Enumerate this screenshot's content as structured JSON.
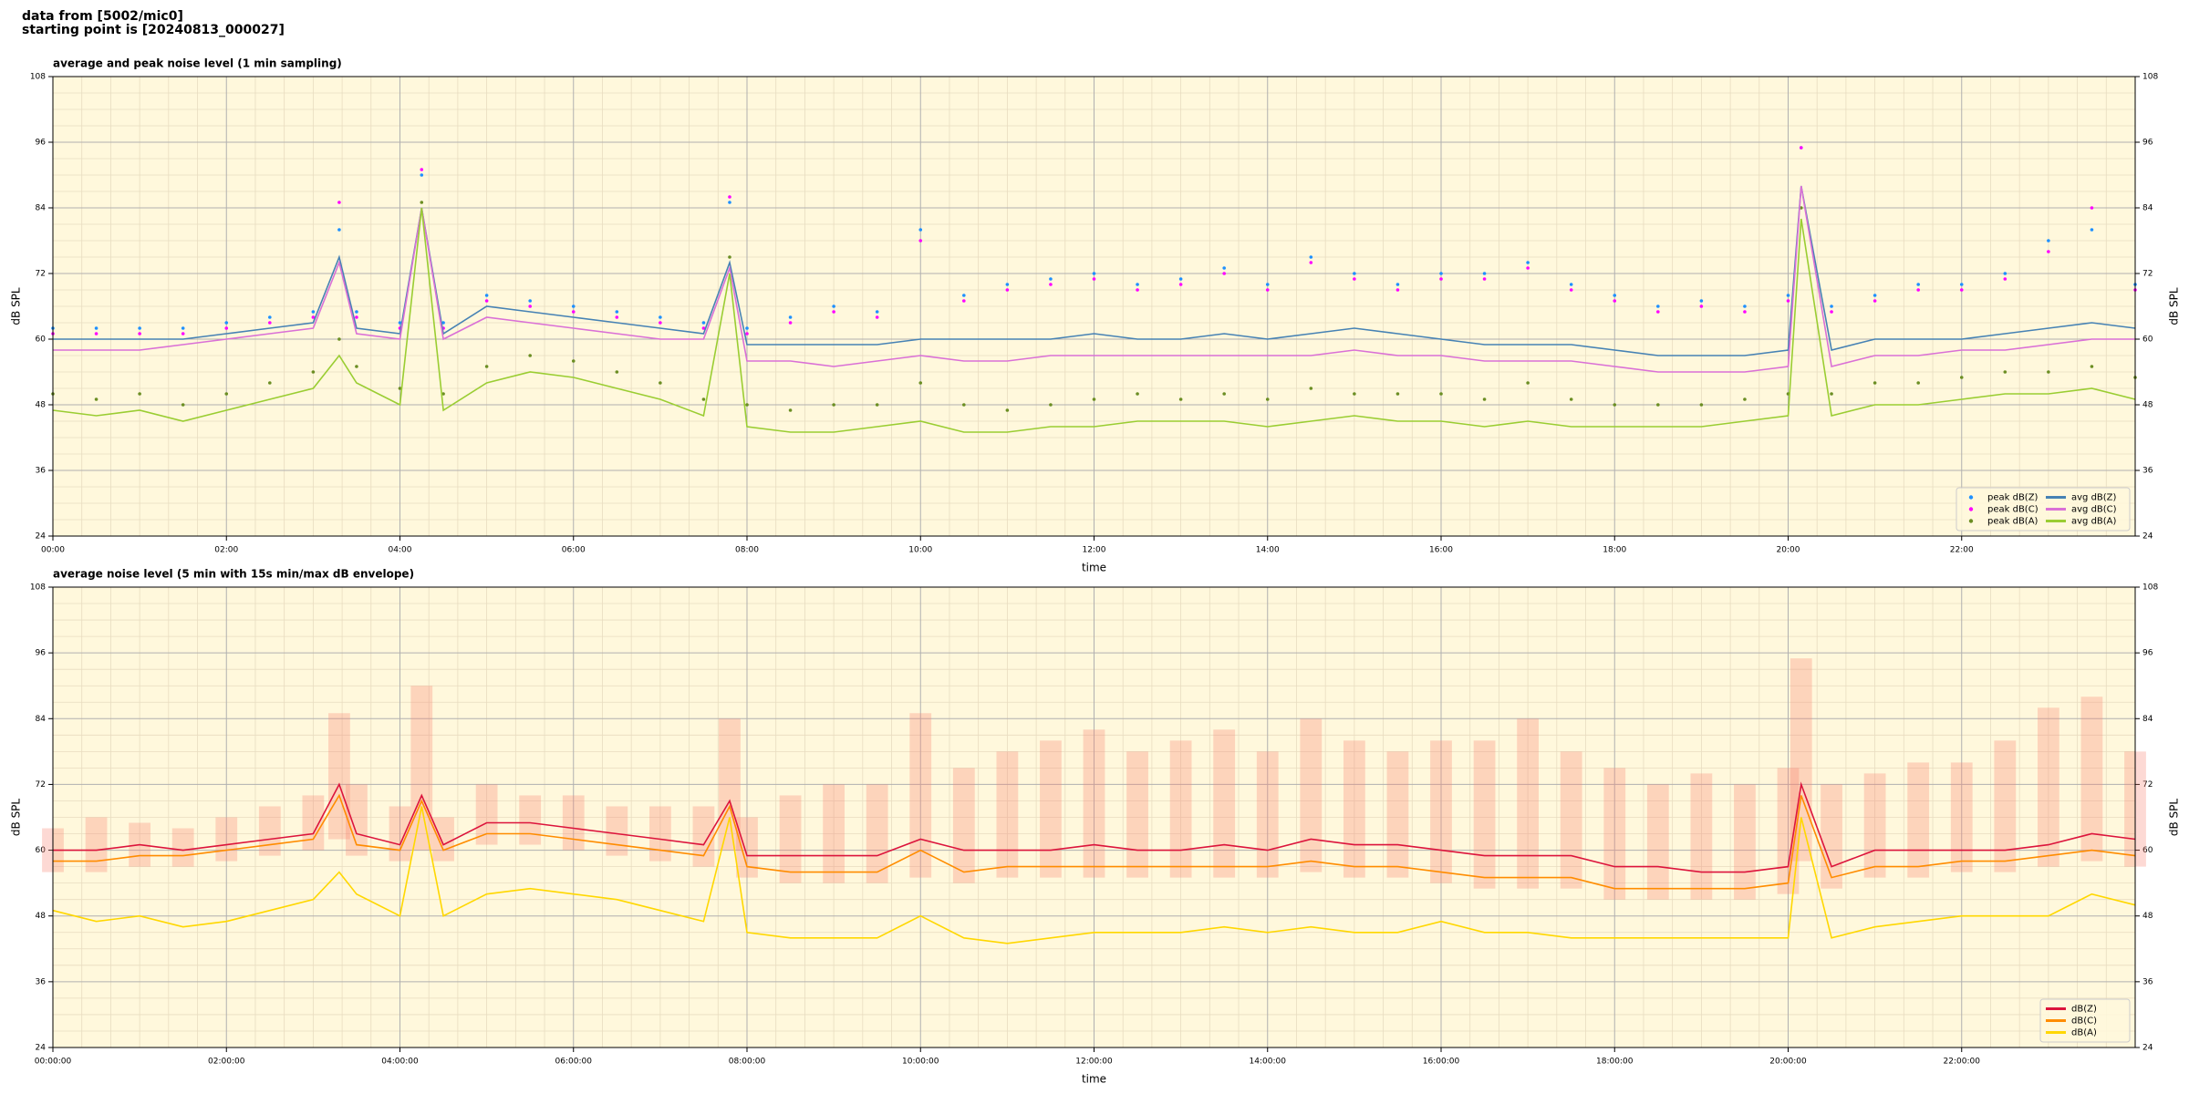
{
  "header": {
    "lines": [
      "data from [5002/mic0]",
      "starting point is [20240813_000027]"
    ]
  },
  "chart_data": [
    {
      "type": "line",
      "title": "average and peak noise level (1 min sampling)",
      "xlabel": "time",
      "ylabel": "dB SPL",
      "xlim": [
        0,
        24
      ],
      "ylim": [
        24,
        108
      ],
      "xticks": [
        {
          "value": 0,
          "label": "00:00"
        },
        {
          "value": 2,
          "label": "02:00"
        },
        {
          "value": 4,
          "label": "04:00"
        },
        {
          "value": 6,
          "label": "06:00"
        },
        {
          "value": 8,
          "label": "08:00"
        },
        {
          "value": 10,
          "label": "10:00"
        },
        {
          "value": 12,
          "label": "12:00"
        },
        {
          "value": 14,
          "label": "14:00"
        },
        {
          "value": 16,
          "label": "16:00"
        },
        {
          "value": 18,
          "label": "18:00"
        },
        {
          "value": 20,
          "label": "20:00"
        },
        {
          "value": 22,
          "label": "22:00"
        }
      ],
      "yticks": [
        24,
        36,
        48,
        60,
        72,
        84,
        96,
        108
      ],
      "grid": true,
      "minor_grid": true,
      "legend": "lower right",
      "x": [
        0,
        0.5,
        1,
        1.5,
        2,
        2.5,
        3,
        3.3,
        3.5,
        4,
        4.25,
        4.5,
        5,
        5.5,
        6,
        6.5,
        7,
        7.5,
        7.8,
        8,
        8.5,
        9,
        9.5,
        10,
        10.5,
        11,
        11.5,
        12,
        12.5,
        13,
        13.5,
        14,
        14.5,
        15,
        15.5,
        16,
        16.5,
        17,
        17.5,
        18,
        18.5,
        19,
        19.5,
        20,
        20.15,
        20.5,
        21,
        21.5,
        22,
        22.5,
        23,
        23.5,
        24
      ],
      "series": [
        {
          "name": "peak dB(Z)",
          "type": "scatter",
          "color": "#1e90ff",
          "values": [
            62,
            62,
            62,
            62,
            63,
            64,
            65,
            80,
            65,
            63,
            90,
            63,
            68,
            67,
            66,
            65,
            64,
            63,
            85,
            62,
            64,
            66,
            65,
            80,
            68,
            70,
            71,
            72,
            70,
            71,
            73,
            70,
            75,
            72,
            70,
            72,
            72,
            74,
            70,
            68,
            66,
            67,
            66,
            68,
            95,
            66,
            68,
            70,
            70,
            72,
            78,
            80,
            70
          ]
        },
        {
          "name": "peak dB(C)",
          "type": "scatter",
          "color": "#ff00ff",
          "values": [
            61,
            61,
            61,
            61,
            62,
            63,
            64,
            85,
            64,
            62,
            91,
            62,
            67,
            66,
            65,
            64,
            63,
            62,
            86,
            61,
            63,
            65,
            64,
            78,
            67,
            69,
            70,
            71,
            69,
            70,
            72,
            69,
            74,
            71,
            69,
            71,
            71,
            73,
            69,
            67,
            65,
            66,
            65,
            67,
            95,
            65,
            67,
            69,
            69,
            71,
            76,
            84,
            69
          ]
        },
        {
          "name": "peak dB(A)",
          "type": "scatter",
          "color": "#6b8e23",
          "values": [
            50,
            49,
            50,
            48,
            50,
            52,
            54,
            60,
            55,
            51,
            85,
            50,
            55,
            57,
            56,
            54,
            52,
            49,
            75,
            48,
            47,
            48,
            48,
            52,
            48,
            47,
            48,
            49,
            50,
            49,
            50,
            49,
            51,
            50,
            50,
            50,
            49,
            52,
            49,
            48,
            48,
            48,
            49,
            50,
            84,
            50,
            52,
            52,
            53,
            54,
            54,
            55,
            53
          ]
        },
        {
          "name": "avg dB(Z)",
          "type": "line",
          "color": "#4682b4",
          "values": [
            60,
            60,
            60,
            60,
            61,
            62,
            63,
            75,
            62,
            61,
            84,
            61,
            66,
            65,
            64,
            63,
            62,
            61,
            74,
            59,
            59,
            59,
            59,
            60,
            60,
            60,
            60,
            61,
            60,
            60,
            61,
            60,
            61,
            62,
            61,
            60,
            59,
            59,
            59,
            58,
            57,
            57,
            57,
            58,
            88,
            58,
            60,
            60,
            60,
            61,
            62,
            63,
            62
          ]
        },
        {
          "name": "avg dB(C)",
          "type": "line",
          "color": "#da70d6",
          "values": [
            58,
            58,
            58,
            59,
            60,
            61,
            62,
            74,
            61,
            60,
            84,
            60,
            64,
            63,
            62,
            61,
            60,
            60,
            73,
            56,
            56,
            55,
            56,
            57,
            56,
            56,
            57,
            57,
            57,
            57,
            57,
            57,
            57,
            58,
            57,
            57,
            56,
            56,
            56,
            55,
            54,
            54,
            54,
            55,
            88,
            55,
            57,
            57,
            58,
            58,
            59,
            60,
            60
          ]
        },
        {
          "name": "avg dB(A)",
          "type": "line",
          "color": "#9acd32",
          "values": [
            47,
            46,
            47,
            45,
            47,
            49,
            51,
            57,
            52,
            48,
            84,
            47,
            52,
            54,
            53,
            51,
            49,
            46,
            72,
            44,
            43,
            43,
            44,
            45,
            43,
            43,
            44,
            44,
            45,
            45,
            45,
            44,
            45,
            46,
            45,
            45,
            44,
            45,
            44,
            44,
            44,
            44,
            45,
            46,
            82,
            46,
            48,
            48,
            49,
            50,
            50,
            51,
            49
          ]
        }
      ]
    },
    {
      "type": "line",
      "title": "average noise level (5 min with 15s min/max dB envelope)",
      "xlabel": "time",
      "ylabel": "dB SPL",
      "xlim": [
        0,
        24
      ],
      "ylim": [
        24,
        108
      ],
      "xticks": [
        {
          "value": 0,
          "label": "00:00:00"
        },
        {
          "value": 2,
          "label": "02:00:00"
        },
        {
          "value": 4,
          "label": "04:00:00"
        },
        {
          "value": 6,
          "label": "06:00:00"
        },
        {
          "value": 8,
          "label": "08:00:00"
        },
        {
          "value": 10,
          "label": "10:00:00"
        },
        {
          "value": 12,
          "label": "12:00:00"
        },
        {
          "value": 14,
          "label": "14:00:00"
        },
        {
          "value": 16,
          "label": "16:00:00"
        },
        {
          "value": 18,
          "label": "18:00:00"
        },
        {
          "value": 20,
          "label": "20:00:00"
        },
        {
          "value": 22,
          "label": "22:00:00"
        }
      ],
      "yticks": [
        24,
        36,
        48,
        60,
        72,
        84,
        96,
        108
      ],
      "grid": true,
      "minor_grid": true,
      "legend": "lower right",
      "x": [
        0,
        0.5,
        1,
        1.5,
        2,
        2.5,
        3,
        3.3,
        3.5,
        4,
        4.25,
        4.5,
        5,
        5.5,
        6,
        6.5,
        7,
        7.5,
        7.8,
        8,
        8.5,
        9,
        9.5,
        10,
        10.5,
        11,
        11.5,
        12,
        12.5,
        13,
        13.5,
        14,
        14.5,
        15,
        15.5,
        16,
        16.5,
        17,
        17.5,
        18,
        18.5,
        19,
        19.5,
        20,
        20.15,
        20.5,
        21,
        21.5,
        22,
        22.5,
        23,
        23.5,
        24
      ],
      "envelope_color": "#fa8072",
      "envelope_max": [
        64,
        66,
        65,
        64,
        66,
        68,
        70,
        85,
        72,
        68,
        90,
        66,
        72,
        70,
        70,
        68,
        68,
        68,
        84,
        66,
        70,
        72,
        72,
        85,
        75,
        78,
        80,
        82,
        78,
        80,
        82,
        78,
        84,
        80,
        78,
        80,
        80,
        84,
        78,
        75,
        72,
        74,
        72,
        75,
        95,
        72,
        74,
        76,
        76,
        80,
        86,
        88,
        78
      ],
      "envelope_min": [
        56,
        56,
        57,
        57,
        58,
        59,
        60,
        62,
        59,
        58,
        60,
        58,
        61,
        61,
        60,
        59,
        58,
        57,
        60,
        55,
        54,
        54,
        54,
        55,
        54,
        55,
        55,
        55,
        55,
        55,
        55,
        55,
        56,
        55,
        55,
        54,
        53,
        53,
        53,
        51,
        51,
        51,
        51,
        52,
        58,
        53,
        55,
        55,
        56,
        56,
        57,
        58,
        57
      ],
      "series": [
        {
          "name": "dB(Z)",
          "type": "line",
          "color": "#dc143c",
          "values": [
            60,
            60,
            61,
            60,
            61,
            62,
            63,
            72,
            63,
            61,
            70,
            61,
            65,
            65,
            64,
            63,
            62,
            61,
            69,
            59,
            59,
            59,
            59,
            62,
            60,
            60,
            60,
            61,
            60,
            60,
            61,
            60,
            62,
            61,
            61,
            60,
            59,
            59,
            59,
            57,
            57,
            56,
            56,
            57,
            72,
            57,
            60,
            60,
            60,
            60,
            61,
            63,
            62
          ]
        },
        {
          "name": "dB(C)",
          "type": "line",
          "color": "#ff8c00",
          "values": [
            58,
            58,
            59,
            59,
            60,
            61,
            62,
            70,
            61,
            60,
            69,
            60,
            63,
            63,
            62,
            61,
            60,
            59,
            68,
            57,
            56,
            56,
            56,
            60,
            56,
            57,
            57,
            57,
            57,
            57,
            57,
            57,
            58,
            57,
            57,
            56,
            55,
            55,
            55,
            53,
            53,
            53,
            53,
            54,
            70,
            55,
            57,
            57,
            58,
            58,
            59,
            60,
            59
          ]
        },
        {
          "name": "dB(A)",
          "type": "line",
          "color": "#ffd700",
          "values": [
            49,
            47,
            48,
            46,
            47,
            49,
            51,
            56,
            52,
            48,
            68,
            48,
            52,
            53,
            52,
            51,
            49,
            47,
            66,
            45,
            44,
            44,
            44,
            48,
            44,
            43,
            44,
            45,
            45,
            45,
            46,
            45,
            46,
            45,
            45,
            47,
            45,
            45,
            44,
            44,
            44,
            44,
            44,
            44,
            66,
            44,
            46,
            47,
            48,
            48,
            48,
            52,
            50
          ]
        }
      ]
    }
  ]
}
